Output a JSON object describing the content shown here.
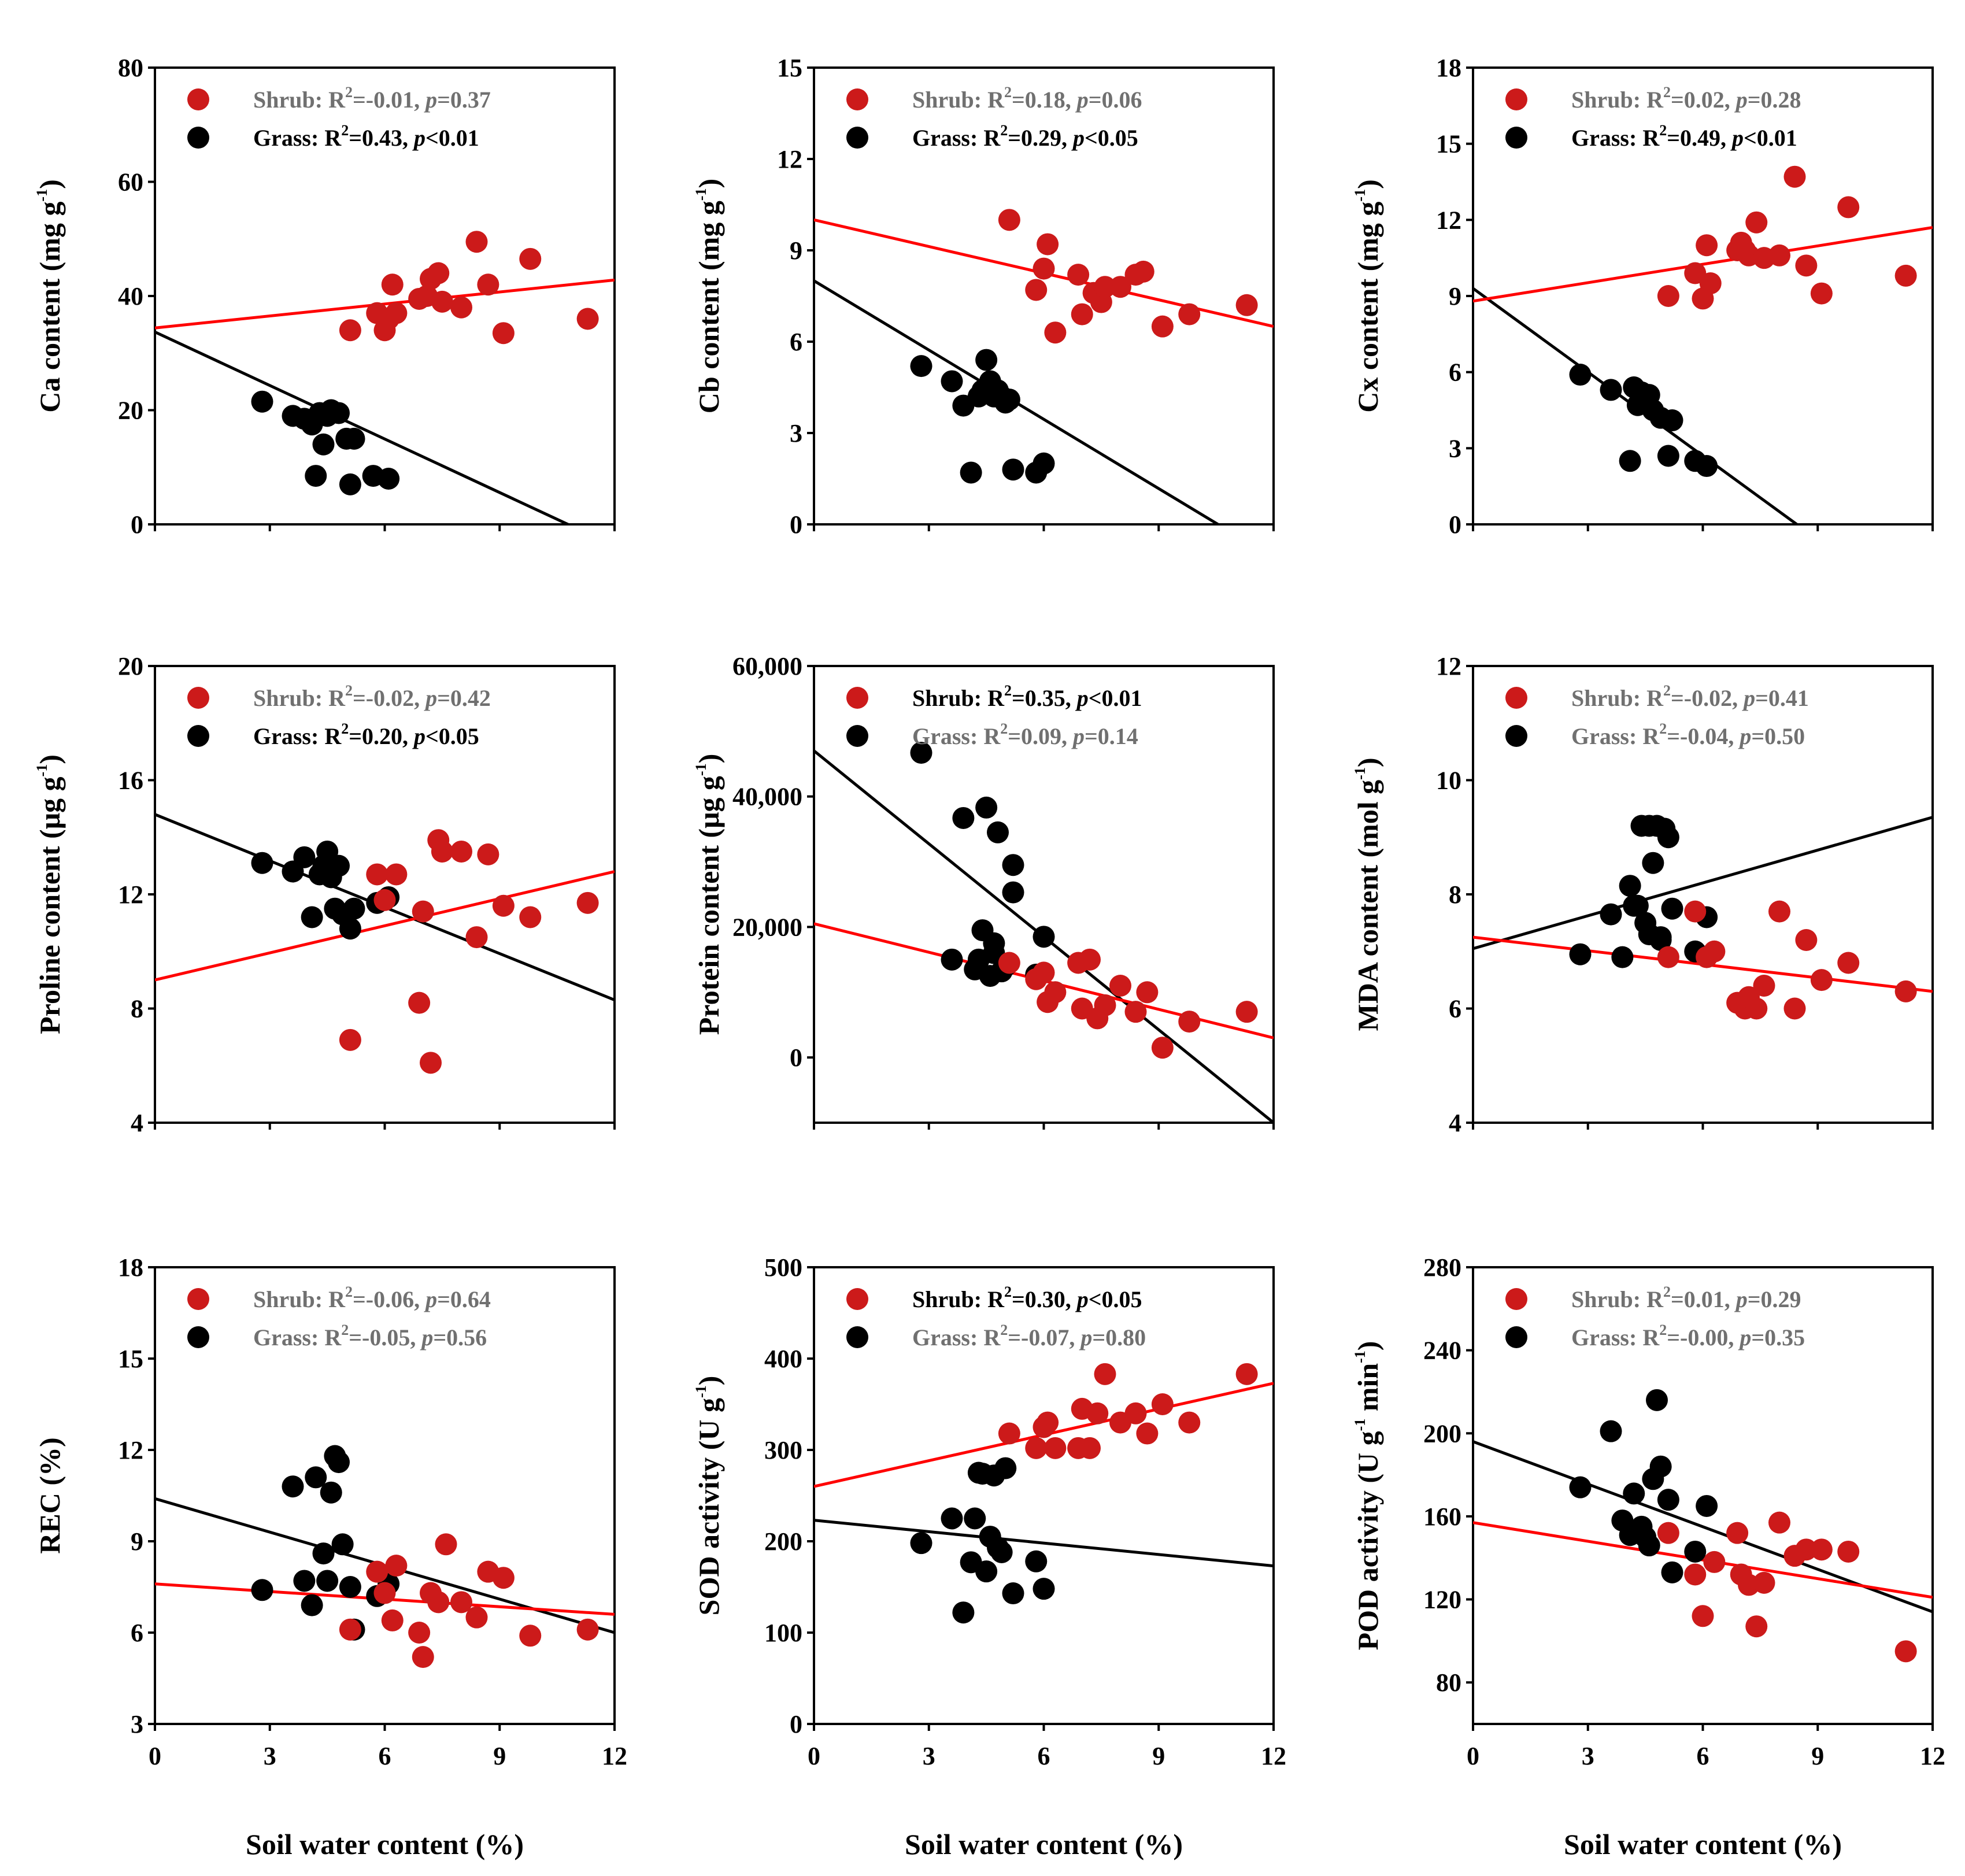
{
  "colors": {
    "shrub": "#cc1a1a",
    "grass": "#000000",
    "shrub_line": "#ff0000",
    "grass_line": "#000000",
    "leg_sig": "#000000",
    "leg_ns": "#707070"
  },
  "legend_words": {
    "shrub": "Shrub:",
    "grass": "Grass:",
    "r2": "R",
    "sup2": "2",
    "p": "p"
  },
  "chart_data": [
    {
      "type": "scatter",
      "id": "ca",
      "ylabel": {
        "main": "Ca content (mg g",
        "sup": "-1",
        "tail": ")"
      },
      "xlabel": "",
      "xlim": [
        0,
        12
      ],
      "xticks": [
        0,
        3,
        6,
        9,
        12
      ],
      "show_xticklabels": false,
      "ylim": [
        0,
        80
      ],
      "yticks": [
        "0",
        "20",
        "40",
        "60",
        "80"
      ],
      "ytick_values": [
        0,
        20,
        40,
        60,
        80
      ],
      "legend": [
        {
          "group": "shrub",
          "r2": "=-0.01, ",
          "pv": "=0.37",
          "sig": false
        },
        {
          "group": "grass",
          "r2": "=0.43, ",
          "pv": "<0.01",
          "sig": true
        }
      ],
      "shrub": {
        "x": [
          5.1,
          5.8,
          6.0,
          6.1,
          6.2,
          6.3,
          6.9,
          7.1,
          7.2,
          7.4,
          7.5,
          8.0,
          8.4,
          8.7,
          9.1,
          9.8,
          11.3
        ],
        "y": [
          34,
          37,
          34,
          36,
          42,
          37,
          39.5,
          40,
          43,
          44,
          39,
          38,
          49.5,
          42,
          33.5,
          46.5,
          36
        ],
        "line": [
          34.4,
          42.8
        ]
      },
      "grass": {
        "x": [
          2.8,
          3.6,
          3.9,
          4.2,
          4.4,
          4.5,
          4.6,
          4.8,
          5.0,
          5.1,
          5.2,
          5.7,
          6.1,
          4.1,
          4.3
        ],
        "y": [
          21.5,
          19,
          18.5,
          8.5,
          14,
          19,
          20,
          19.5,
          15,
          7,
          15,
          8.5,
          8,
          17.5,
          19.5
        ],
        "line": [
          33.7,
          -3.8
        ]
      }
    },
    {
      "type": "scatter",
      "id": "cb",
      "ylabel": {
        "main": "Cb content (mg g",
        "sup": "-1",
        "tail": ")"
      },
      "xlabel": "",
      "xlim": [
        0,
        12
      ],
      "xticks": [
        0,
        3,
        6,
        9,
        12
      ],
      "show_xticklabels": false,
      "ylim": [
        0,
        15
      ],
      "yticks": [
        "0",
        "3",
        "6",
        "9",
        "12",
        "15"
      ],
      "ytick_values": [
        0,
        3,
        6,
        9,
        12,
        15
      ],
      "legend": [
        {
          "group": "shrub",
          "r2": "=0.18, ",
          "pv": "=0.06",
          "sig": false
        },
        {
          "group": "grass",
          "r2": "=0.29, ",
          "pv": "<0.05",
          "sig": true
        }
      ],
      "shrub": {
        "x": [
          5.1,
          5.8,
          6.0,
          6.1,
          6.3,
          6.9,
          7.0,
          7.3,
          7.5,
          7.6,
          8.0,
          8.4,
          8.6,
          9.1,
          9.8,
          11.3
        ],
        "y": [
          10,
          7.7,
          8.4,
          9.2,
          6.3,
          8.2,
          6.9,
          7.6,
          7.3,
          7.8,
          7.8,
          8.2,
          8.3,
          6.5,
          6.9,
          7.2
        ],
        "line": [
          10.0,
          6.5
        ]
      },
      "grass": {
        "x": [
          2.8,
          3.6,
          3.9,
          4.1,
          4.3,
          4.4,
          4.5,
          4.6,
          4.7,
          4.8,
          4.9,
          5.0,
          5.2,
          5.8,
          6.0,
          4.6,
          5.1
        ],
        "y": [
          5.2,
          4.7,
          3.9,
          1.7,
          4.2,
          4.4,
          5.4,
          4.6,
          4.2,
          4.4,
          4.2,
          4.0,
          1.8,
          1.7,
          2.0,
          4.7,
          4.1
        ],
        "line": [
          8.0,
          -1.1
        ]
      }
    },
    {
      "type": "scatter",
      "id": "cx",
      "ylabel": {
        "main": "Cx content (mg g",
        "sup": "-1",
        "tail": ")"
      },
      "xlabel": "",
      "xlim": [
        0,
        12
      ],
      "xticks": [
        0,
        3,
        6,
        9,
        12
      ],
      "show_xticklabels": false,
      "ylim": [
        0,
        18
      ],
      "yticks": [
        "0",
        "3",
        "6",
        "9",
        "12",
        "15",
        "18"
      ],
      "ytick_values": [
        0,
        3,
        6,
        9,
        12,
        15,
        18
      ],
      "legend": [
        {
          "group": "shrub",
          "r2": "=0.02, ",
          "pv": "=0.28",
          "sig": false
        },
        {
          "group": "grass",
          "r2": "=0.49, ",
          "pv": "<0.01",
          "sig": true
        }
      ],
      "shrub": {
        "x": [
          5.1,
          5.8,
          6.0,
          6.1,
          6.2,
          6.9,
          7.0,
          7.1,
          7.2,
          7.4,
          7.6,
          8.0,
          8.4,
          8.7,
          9.1,
          9.8,
          11.3
        ],
        "y": [
          9.0,
          9.9,
          8.9,
          11.0,
          9.5,
          10.8,
          11.1,
          10.8,
          10.6,
          11.9,
          10.5,
          10.6,
          13.7,
          10.2,
          9.1,
          12.5,
          9.8
        ],
        "line": [
          8.8,
          11.7
        ]
      },
      "grass": {
        "x": [
          2.8,
          3.6,
          4.1,
          4.2,
          4.3,
          4.4,
          4.6,
          4.7,
          4.9,
          5.2,
          5.8,
          6.1,
          5.1,
          4.5
        ],
        "y": [
          5.9,
          5.3,
          2.5,
          5.4,
          4.7,
          5.2,
          5.1,
          4.5,
          4.2,
          4.1,
          2.5,
          2.3,
          2.7,
          4.8
        ],
        "line": [
          9.3,
          -3.9
        ]
      }
    },
    {
      "type": "scatter",
      "id": "proline",
      "ylabel": {
        "main": "Proline content (μg g",
        "sup": "-1",
        "tail": ")"
      },
      "xlabel": "",
      "xlim": [
        0,
        12
      ],
      "xticks": [
        0,
        3,
        6,
        9,
        12
      ],
      "show_xticklabels": false,
      "ylim": [
        4,
        20
      ],
      "yticks": [
        "4",
        "8",
        "12",
        "16",
        "20"
      ],
      "ytick_values": [
        4,
        8,
        12,
        16,
        20
      ],
      "legend": [
        {
          "group": "shrub",
          "r2": "=-0.02, ",
          "pv": "=0.42",
          "sig": false
        },
        {
          "group": "grass",
          "r2": "=0.20, ",
          "pv": "<0.05",
          "sig": true
        }
      ],
      "shrub": {
        "x": [
          5.1,
          5.8,
          6.0,
          6.3,
          6.9,
          7.0,
          7.2,
          7.4,
          7.5,
          8.0,
          8.4,
          8.7,
          9.1,
          9.8,
          11.3
        ],
        "y": [
          6.9,
          12.7,
          11.8,
          12.7,
          8.2,
          11.4,
          6.1,
          13.9,
          13.5,
          13.5,
          10.5,
          13.4,
          11.6,
          11.2,
          11.7
        ],
        "line": [
          9.0,
          12.8
        ]
      },
      "grass": {
        "x": [
          2.8,
          3.6,
          3.9,
          4.1,
          4.3,
          4.4,
          4.5,
          4.6,
          4.7,
          4.8,
          4.9,
          5.1,
          5.2,
          5.8,
          6.1
        ],
        "y": [
          13.1,
          12.8,
          13.3,
          11.2,
          12.7,
          13.0,
          13.5,
          12.6,
          11.5,
          13.0,
          11.3,
          10.8,
          11.5,
          11.7,
          11.9
        ],
        "line": [
          14.8,
          8.3
        ]
      }
    },
    {
      "type": "scatter",
      "id": "protein",
      "ylabel": {
        "main": "Protein content (μg g",
        "sup": "-1",
        "tail": ")"
      },
      "xlabel": "",
      "xlim": [
        0,
        12
      ],
      "xticks": [
        0,
        3,
        6,
        9,
        12
      ],
      "show_xticklabels": false,
      "ylim": [
        -10000,
        60000
      ],
      "yticks": [
        "0",
        "20,000",
        "40,000",
        "60,000"
      ],
      "ytick_values": [
        0,
        20000,
        40000,
        60000
      ],
      "legend": [
        {
          "group": "shrub",
          "r2": "=0.35, ",
          "pv": "<0.01",
          "sig": true
        },
        {
          "group": "grass",
          "r2": "=0.09, ",
          "pv": "=0.14",
          "sig": false
        }
      ],
      "shrub": {
        "x": [
          5.1,
          5.8,
          6.0,
          6.1,
          6.3,
          6.9,
          7.0,
          7.2,
          7.4,
          7.6,
          8.0,
          8.4,
          8.7,
          9.1,
          9.8,
          11.3
        ],
        "y": [
          14500,
          12000,
          13000,
          8500,
          10000,
          14500,
          7500,
          15000,
          6000,
          8000,
          11000,
          7000,
          10000,
          1500,
          5500,
          7000
        ],
        "line": [
          20500,
          3000
        ]
      },
      "grass": {
        "x": [
          2.8,
          3.6,
          3.9,
          4.2,
          4.4,
          4.5,
          4.6,
          4.7,
          4.8,
          4.9,
          5.2,
          5.2,
          5.8,
          6.0,
          4.3,
          4.7,
          5.0
        ],
        "y": [
          46700,
          15000,
          36700,
          13500,
          19500,
          38300,
          12500,
          17500,
          34500,
          13200,
          29500,
          25300,
          12700,
          18500,
          15000,
          16000,
          14000
        ],
        "line": [
          47000,
          -10000
        ]
      }
    },
    {
      "type": "scatter",
      "id": "mda",
      "ylabel": {
        "main": "MDA content (mol g",
        "sup": "-1",
        "tail": ")"
      },
      "xlabel": "",
      "xlim": [
        0,
        12
      ],
      "xticks": [
        0,
        3,
        6,
        9,
        12
      ],
      "show_xticklabels": false,
      "ylim": [
        4,
        12
      ],
      "yticks": [
        "4",
        "6",
        "8",
        "10",
        "12"
      ],
      "ytick_values": [
        4,
        6,
        8,
        10,
        12
      ],
      "legend": [
        {
          "group": "shrub",
          "r2": "=-0.02, ",
          "pv": "=0.41",
          "sig": false
        },
        {
          "group": "grass",
          "r2": "=-0.04, ",
          "pv": "=0.50",
          "sig": false
        }
      ],
      "shrub": {
        "x": [
          5.1,
          5.8,
          6.1,
          6.3,
          6.9,
          7.1,
          7.2,
          7.4,
          7.6,
          8.0,
          8.4,
          8.7,
          9.1,
          9.8,
          11.3
        ],
        "y": [
          6.9,
          7.7,
          6.9,
          7.0,
          6.1,
          6.0,
          6.2,
          6.0,
          6.4,
          7.7,
          6.0,
          7.2,
          6.5,
          6.8,
          6.3
        ],
        "line": [
          7.25,
          6.3
        ]
      },
      "grass": {
        "x": [
          2.8,
          3.6,
          3.9,
          4.1,
          4.2,
          4.4,
          4.5,
          4.6,
          4.7,
          4.8,
          4.9,
          5.0,
          5.1,
          5.2,
          5.8,
          6.1,
          4.3,
          4.6,
          4.9
        ],
        "y": [
          6.95,
          7.65,
          6.9,
          8.15,
          7.8,
          9.2,
          7.5,
          9.2,
          8.55,
          9.2,
          7.25,
          9.15,
          9.0,
          7.75,
          7.0,
          7.6,
          7.8,
          7.3,
          7.2
        ],
        "line": [
          7.05,
          9.35
        ]
      }
    },
    {
      "type": "scatter",
      "id": "rec",
      "ylabel": {
        "main": "REC (%)",
        "sup": "",
        "tail": ""
      },
      "xlabel": "Soil water content (%)",
      "xlim": [
        0,
        12
      ],
      "xticks": [
        "0",
        "3",
        "6",
        "9",
        "12"
      ],
      "xtick_values": [
        0,
        3,
        6,
        9,
        12
      ],
      "show_xticklabels": true,
      "ylim": [
        3,
        18
      ],
      "yticks": [
        "3",
        "6",
        "9",
        "12",
        "15",
        "18"
      ],
      "ytick_values": [
        3,
        6,
        9,
        12,
        15,
        18
      ],
      "legend": [
        {
          "group": "shrub",
          "r2": "=-0.06, ",
          "pv": "=0.64",
          "sig": false
        },
        {
          "group": "grass",
          "r2": "=-0.05, ",
          "pv": "=0.56",
          "sig": false
        }
      ],
      "shrub": {
        "x": [
          5.1,
          5.8,
          6.0,
          6.2,
          6.3,
          6.9,
          7.0,
          7.2,
          7.4,
          7.6,
          8.0,
          8.4,
          8.7,
          9.1,
          9.8,
          11.3
        ],
        "y": [
          6.1,
          8.0,
          7.3,
          6.4,
          8.2,
          6.0,
          5.2,
          7.3,
          7.0,
          8.9,
          7.0,
          6.5,
          8.0,
          7.8,
          5.9,
          6.1
        ],
        "line": [
          7.6,
          6.6
        ]
      },
      "grass": {
        "x": [
          2.8,
          3.6,
          3.9,
          4.1,
          4.2,
          4.4,
          4.5,
          4.6,
          4.7,
          4.8,
          4.9,
          5.1,
          5.2,
          5.8,
          6.1
        ],
        "y": [
          7.4,
          10.8,
          7.7,
          6.9,
          11.1,
          8.6,
          7.7,
          10.6,
          11.8,
          11.6,
          8.9,
          7.5,
          6.1,
          7.2,
          7.6
        ],
        "line": [
          10.4,
          6.0
        ]
      }
    },
    {
      "type": "scatter",
      "id": "sod",
      "ylabel": {
        "main": "SOD activity (U g",
        "sup": "-1",
        "tail": ")"
      },
      "xlabel": "Soil water content (%)",
      "xlim": [
        0,
        12
      ],
      "xticks": [
        "0",
        "3",
        "6",
        "9",
        "12"
      ],
      "xtick_values": [
        0,
        3,
        6,
        9,
        12
      ],
      "show_xticklabels": true,
      "ylim": [
        0,
        500
      ],
      "yticks": [
        "0",
        "100",
        "200",
        "300",
        "400",
        "500"
      ],
      "ytick_values": [
        0,
        100,
        200,
        300,
        400,
        500
      ],
      "legend": [
        {
          "group": "shrub",
          "r2": "=0.30, ",
          "pv": "<0.05",
          "sig": true
        },
        {
          "group": "grass",
          "r2": "=-0.07, ",
          "pv": "=0.80",
          "sig": false
        }
      ],
      "shrub": {
        "x": [
          5.1,
          5.8,
          6.0,
          6.1,
          6.3,
          6.9,
          7.0,
          7.2,
          7.4,
          7.6,
          8.0,
          8.4,
          8.7,
          9.1,
          9.8,
          11.3
        ],
        "y": [
          318,
          302,
          325,
          330,
          302,
          302,
          345,
          302,
          340,
          383,
          330,
          340,
          318,
          350,
          330,
          383
        ],
        "line": [
          260,
          373
        ]
      },
      "grass": {
        "x": [
          2.8,
          3.6,
          3.9,
          4.1,
          4.2,
          4.4,
          4.5,
          4.6,
          4.7,
          4.8,
          4.9,
          5.0,
          5.2,
          5.8,
          6.0,
          4.3
        ],
        "y": [
          198,
          225,
          122,
          177,
          225,
          274,
          167,
          205,
          272,
          193,
          188,
          280,
          143,
          178,
          148,
          275
        ],
        "line": [
          223,
          173
        ]
      }
    },
    {
      "type": "scatter",
      "id": "pod",
      "ylabel": {
        "main": "POD activity (U g",
        "sup": "-1",
        "tail": " min",
        "sup2": "-1",
        "tail2": ")"
      },
      "xlabel": "Soil water content (%)",
      "xlim": [
        0,
        12
      ],
      "xticks": [
        "0",
        "3",
        "6",
        "9",
        "12"
      ],
      "xtick_values": [
        0,
        3,
        6,
        9,
        12
      ],
      "show_xticklabels": true,
      "ylim": [
        60,
        280
      ],
      "yticks": [
        "80",
        "120",
        "160",
        "200",
        "240",
        "280"
      ],
      "ytick_values": [
        80,
        120,
        160,
        200,
        240,
        280
      ],
      "legend": [
        {
          "group": "shrub",
          "r2": "=0.01, ",
          "pv": "=0.29",
          "sig": false
        },
        {
          "group": "grass",
          "r2": "=-0.00, ",
          "pv": "=0.35",
          "sig": false
        }
      ],
      "shrub": {
        "x": [
          5.1,
          5.8,
          6.0,
          6.3,
          6.9,
          7.0,
          7.2,
          7.4,
          7.6,
          8.0,
          8.4,
          8.7,
          9.1,
          9.8,
          11.3
        ],
        "y": [
          152,
          132,
          112,
          138,
          152,
          132,
          127,
          107,
          128,
          157,
          141,
          144,
          144,
          143,
          95
        ],
        "line": [
          157,
          121
        ]
      },
      "grass": {
        "x": [
          2.8,
          3.6,
          3.9,
          4.1,
          4.2,
          4.4,
          4.5,
          4.6,
          4.7,
          4.8,
          4.9,
          5.1,
          5.2,
          5.8,
          6.1,
          4.3
        ],
        "y": [
          174,
          201,
          158,
          151,
          171,
          155,
          150,
          146,
          178,
          216,
          184,
          168,
          133,
          143,
          165,
          153
        ],
        "line": [
          196,
          114
        ]
      }
    }
  ]
}
